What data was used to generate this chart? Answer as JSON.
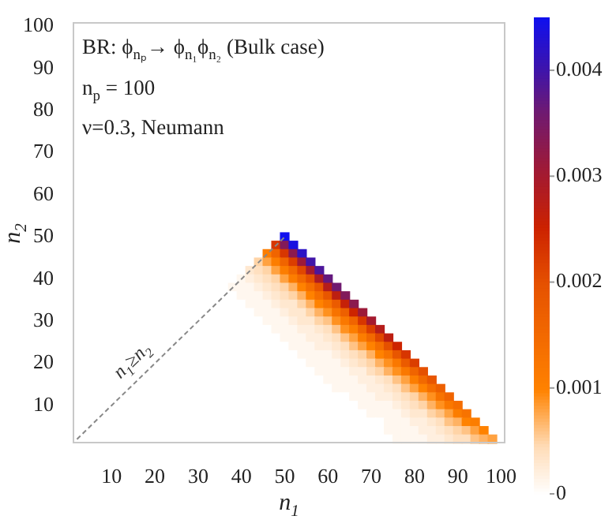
{
  "chart_data": {
    "type": "heatmap",
    "annotations": [
      "BR: ϕ$_{nₚ}$→ ϕ$_{n₁}$ϕ$_{n₂}$ (Bulk case)",
      "n$_{p}$ = 100",
      "ν=0.3, Neumann",
      "n$_{1}$≥n$_{2}$"
    ],
    "xlabel": "n$_{1}$",
    "ylabel": "n$_{2}$",
    "categories": [
      null,
      null,
      null,
      null,
      "10",
      null,
      null,
      null,
      null,
      "20",
      null,
      null,
      null,
      null,
      "30",
      null,
      null,
      null,
      null,
      "40",
      null,
      null,
      null,
      null,
      "50",
      null,
      null,
      null,
      null,
      "60",
      null,
      null,
      null,
      null,
      "70",
      null,
      null,
      null,
      null,
      "80",
      null,
      null,
      null,
      null,
      "90",
      null,
      null,
      null,
      null,
      "100"
    ],
    "y_categories": [
      "100",
      null,
      null,
      null,
      null,
      "90",
      null,
      null,
      null,
      null,
      "80",
      null,
      null,
      null,
      null,
      "70",
      null,
      null,
      null,
      null,
      "60",
      null,
      null,
      null,
      null,
      "50",
      null,
      null,
      null,
      null,
      "40",
      null,
      null,
      null,
      null,
      "30",
      null,
      null,
      null,
      null,
      "20",
      null,
      null,
      null,
      null,
      "10",
      null,
      null,
      null,
      null
    ],
    "series": [
      {
        "type": "line",
        "values": [
          49,
          48,
          47,
          46,
          45,
          44,
          43,
          42,
          41,
          40,
          39,
          38,
          37,
          36,
          35,
          34,
          33,
          32,
          31,
          30,
          29,
          28,
          27,
          26,
          25,
          null,
          null,
          null,
          null,
          null,
          null,
          null,
          null,
          null,
          null,
          null,
          null,
          null,
          null,
          null,
          null,
          null,
          null,
          null,
          null,
          null,
          null,
          null,
          null,
          null
        ],
        "color": "#888888",
        "line_style": "dashed"
      }
    ],
    "clim": [
      0,
      0.0045
    ],
    "cticks": [
      0,
      0.001,
      0.002,
      0.003,
      0.004
    ],
    "cells": [
      [
        0,
        0,
        0,
        0,
        0,
        0,
        0,
        0,
        0,
        0,
        0,
        0,
        0,
        0,
        0,
        0,
        0,
        0,
        0,
        0,
        0,
        0,
        0,
        0,
        0,
        0,
        0,
        0,
        0,
        0,
        0,
        0,
        0,
        0,
        0,
        0,
        0,
        0,
        0,
        0,
        0,
        0,
        0,
        0,
        0,
        0,
        0,
        0,
        0,
        0
      ],
      [
        0,
        0,
        0,
        0,
        0,
        0,
        0,
        0,
        0,
        0,
        0,
        0,
        0,
        0,
        0,
        0,
        0,
        0,
        0,
        0,
        0,
        0,
        0,
        0,
        0,
        0,
        0,
        0,
        0,
        0,
        0,
        0,
        0,
        0,
        0,
        0,
        0,
        0,
        0,
        0,
        0,
        0,
        0,
        0,
        0,
        0,
        0,
        0,
        0,
        0
      ],
      [
        0,
        0,
        0,
        0,
        0,
        0,
        0,
        0,
        0,
        0,
        0,
        0,
        0,
        0,
        0,
        0,
        0,
        0,
        0,
        0,
        0,
        0,
        0,
        0,
        0,
        0,
        0,
        0,
        0,
        0,
        0,
        0,
        0,
        0,
        0,
        0,
        0,
        0,
        0,
        0,
        0,
        0,
        0,
        0,
        0,
        0,
        0,
        0,
        0,
        0
      ],
      [
        0,
        0,
        0,
        0,
        0,
        0,
        0,
        0,
        0,
        0,
        0,
        0,
        0,
        0,
        0,
        0,
        0,
        0,
        0,
        0,
        0,
        0,
        0,
        0,
        0,
        0,
        0,
        0,
        0,
        0,
        0,
        0,
        0,
        0,
        0,
        0,
        0,
        0,
        0,
        0,
        0,
        0,
        0,
        0,
        0,
        0,
        0,
        0,
        0,
        0
      ],
      [
        0,
        0,
        0,
        0,
        0,
        0,
        0,
        0,
        0,
        0,
        0,
        0,
        0,
        0,
        0,
        0,
        0,
        0,
        0,
        0,
        0,
        0,
        0,
        0,
        0,
        0,
        0,
        0,
        0,
        0,
        0,
        0,
        0,
        0,
        0,
        0,
        0,
        0,
        0,
        0,
        0,
        0,
        0,
        0,
        0,
        0,
        0,
        0,
        0,
        0
      ],
      [
        0,
        0,
        0,
        0,
        0,
        0,
        0,
        0,
        0,
        0,
        0,
        0,
        0,
        0,
        0,
        0,
        0,
        0,
        0,
        0,
        0,
        0,
        0,
        0,
        0,
        0,
        0,
        0,
        0,
        0,
        0,
        0,
        0,
        0,
        0,
        0,
        0,
        0,
        0,
        0,
        0,
        0,
        0,
        0,
        0,
        0,
        0,
        0,
        0,
        0
      ],
      [
        0,
        0,
        0,
        0,
        0,
        0,
        0,
        0,
        0,
        0,
        0,
        0,
        0,
        0,
        0,
        0,
        0,
        0,
        0,
        0,
        0,
        0,
        0,
        0,
        0,
        0,
        0,
        0,
        0,
        0,
        0,
        0,
        0,
        0,
        0,
        0,
        0,
        0,
        0,
        0,
        0,
        0,
        0,
        0,
        0,
        0,
        0,
        0,
        0,
        0
      ],
      [
        0,
        0,
        0,
        0,
        0,
        0,
        0,
        0,
        0,
        0,
        0,
        0,
        0,
        0,
        0,
        0,
        0,
        0,
        0,
        0,
        0,
        0,
        0,
        0,
        0,
        0,
        0,
        0,
        0,
        0,
        0,
        0,
        0,
        0,
        0,
        0,
        0,
        0,
        0,
        0,
        0,
        0,
        0,
        0,
        0,
        0,
        0,
        0,
        0,
        0
      ],
      [
        0,
        0,
        0,
        0,
        0,
        0,
        0,
        0,
        0,
        0,
        0,
        0,
        0,
        0,
        0,
        0,
        0,
        0,
        0,
        0,
        0,
        0,
        0,
        0,
        0,
        0,
        0,
        0,
        0,
        0,
        0,
        0,
        0,
        0,
        0,
        0,
        0,
        0,
        0,
        0,
        0,
        0,
        0,
        0,
        0,
        0,
        0,
        0,
        0,
        0
      ],
      [
        0,
        0,
        0,
        0,
        0,
        0,
        0,
        0,
        0,
        0,
        0,
        0,
        0,
        0,
        0,
        0,
        0,
        0,
        0,
        0,
        0,
        0,
        0,
        0,
        0,
        0,
        0,
        0,
        0,
        0,
        0,
        0,
        0,
        0,
        0,
        0,
        0,
        0,
        0,
        0,
        0,
        0,
        0,
        0,
        0,
        0,
        0,
        0,
        0,
        0
      ],
      [
        0,
        0,
        0,
        0,
        0,
        0,
        0,
        0,
        0,
        0,
        0,
        0,
        0,
        0,
        0,
        0,
        0,
        0,
        0,
        0,
        0,
        0,
        0,
        0,
        0,
        0,
        0,
        0,
        0,
        0,
        0,
        0,
        0,
        0,
        0,
        0,
        0,
        0,
        0,
        0,
        0,
        0,
        0,
        0,
        0,
        0,
        0,
        0,
        0,
        0
      ],
      [
        0,
        0,
        0,
        0,
        0,
        0,
        0,
        0,
        0,
        0,
        0,
        0,
        0,
        0,
        0,
        0,
        0,
        0,
        0,
        0,
        0,
        0,
        0,
        0,
        0,
        0,
        0,
        0,
        0,
        0,
        0,
        0,
        0,
        0,
        0,
        0,
        0,
        0,
        0,
        0,
        0,
        0,
        0,
        0,
        0,
        0,
        0,
        0,
        0,
        0
      ],
      [
        0,
        0,
        0,
        0,
        0,
        0,
        0,
        0,
        0,
        0,
        0,
        0,
        0,
        0,
        0,
        0,
        0,
        0,
        0,
        0,
        0,
        0,
        0,
        0,
        0,
        0,
        0,
        0,
        0,
        0,
        0,
        0,
        0,
        0,
        0,
        0,
        0,
        0,
        0,
        0,
        0,
        0,
        0,
        0,
        0,
        0,
        0,
        0,
        0,
        0
      ],
      [
        0,
        0,
        0,
        0,
        0,
        0,
        0,
        0,
        0,
        0,
        0,
        0,
        0,
        0,
        0,
        0,
        0,
        0,
        0,
        0,
        0,
        0,
        0,
        0,
        0,
        0,
        0,
        0,
        0,
        0,
        0,
        0,
        0,
        0,
        0,
        0,
        0,
        0,
        0,
        0,
        0,
        0,
        0,
        0,
        0,
        0,
        0,
        0,
        0,
        0
      ],
      [
        0,
        0,
        0,
        0,
        0,
        0,
        0,
        0,
        0,
        0,
        0,
        0,
        0,
        0,
        0,
        0,
        0,
        0,
        0,
        0,
        0,
        0,
        0,
        0,
        0,
        0,
        0,
        0,
        0,
        0,
        0,
        0,
        0,
        0,
        0,
        0,
        0,
        0,
        0,
        0,
        0,
        0,
        0,
        0,
        0,
        0,
        0,
        0,
        0,
        0
      ],
      [
        0,
        0,
        0,
        0,
        0,
        0,
        0,
        0,
        0,
        0,
        0,
        0,
        0,
        0,
        0,
        0,
        0,
        0,
        0,
        0,
        0,
        0,
        0,
        0,
        0,
        0,
        0,
        0,
        0,
        0,
        0,
        0,
        0,
        0,
        0,
        0,
        0,
        0,
        0,
        0,
        0,
        0,
        0,
        0,
        0,
        0,
        0,
        0,
        0,
        0
      ],
      [
        0,
        0,
        0,
        0,
        0,
        0,
        0,
        0,
        0,
        0,
        0,
        0,
        0,
        0,
        0,
        0,
        0,
        0,
        0,
        0,
        0,
        0,
        0,
        0,
        0,
        0,
        0,
        0,
        0,
        0,
        0,
        0,
        0,
        0,
        0,
        0,
        0,
        0,
        0,
        0,
        0,
        0,
        0,
        0,
        0,
        0,
        0,
        0,
        0,
        0
      ],
      [
        0,
        0,
        0,
        0,
        0,
        0,
        0,
        0,
        0,
        0,
        0,
        0,
        0,
        0,
        0,
        0,
        0,
        0,
        0,
        0,
        0,
        0,
        0,
        0,
        0,
        0,
        0,
        0,
        0,
        0,
        0,
        0,
        0,
        0,
        0,
        0,
        0,
        0,
        0,
        0,
        0,
        0,
        0,
        0,
        0,
        0,
        0,
        0,
        0,
        0
      ],
      [
        0,
        0,
        0,
        0,
        0,
        0,
        0,
        0,
        0,
        0,
        0,
        0,
        0,
        0,
        0,
        0,
        0,
        0,
        0,
        0,
        0,
        0,
        0,
        0,
        0,
        0,
        0,
        0,
        0,
        0,
        0,
        0,
        0,
        0,
        0,
        0,
        0,
        0,
        0,
        0,
        0,
        0,
        0,
        0,
        0,
        0,
        0,
        0,
        0,
        0
      ],
      [
        0,
        0,
        0,
        0,
        0,
        0,
        0,
        0,
        0,
        0,
        0,
        0,
        0,
        0,
        0,
        0,
        0,
        0,
        0,
        0,
        0,
        0,
        0,
        0,
        0,
        0,
        0,
        0,
        0,
        0,
        0,
        0,
        0,
        0,
        0,
        0,
        0,
        0,
        0,
        0,
        0,
        0,
        0,
        0,
        0,
        0,
        0,
        0,
        0,
        0
      ],
      [
        0,
        0,
        0,
        0,
        0,
        0,
        0,
        0,
        0,
        0,
        0,
        0,
        0,
        0,
        0,
        0,
        0,
        0,
        0,
        0,
        0,
        0,
        0,
        0,
        0,
        0,
        0,
        0,
        0,
        0,
        0,
        0,
        0,
        0,
        0,
        0,
        0,
        0,
        0,
        0,
        0,
        0,
        0,
        0,
        0,
        0,
        0,
        0,
        0,
        0
      ],
      [
        0,
        0,
        0,
        0,
        0,
        0,
        0,
        0,
        0,
        0,
        0,
        0,
        0,
        0,
        0,
        0,
        0,
        0,
        0,
        0,
        0,
        0,
        0,
        0,
        0,
        0,
        0,
        0,
        0,
        0,
        0,
        0,
        0,
        0,
        0,
        0,
        0,
        0,
        0,
        0,
        0,
        0,
        0,
        0,
        0,
        0,
        0,
        0,
        0,
        0
      ],
      [
        0,
        0,
        0,
        0,
        0,
        0,
        0,
        0,
        0,
        0,
        0,
        0,
        0,
        0,
        0,
        0,
        0,
        0,
        0,
        0,
        0,
        0,
        0,
        0,
        0,
        0,
        0,
        0,
        0,
        0,
        0,
        0,
        0,
        0,
        0,
        0,
        0,
        0,
        0,
        0,
        0,
        0,
        0,
        0,
        0,
        0,
        0,
        0,
        0,
        0
      ],
      [
        0,
        0,
        0,
        0,
        0,
        0,
        0,
        0,
        0,
        0,
        0,
        0,
        0,
        0,
        0,
        0,
        0,
        0,
        0,
        0,
        0,
        0,
        0,
        0,
        0,
        0,
        0,
        0,
        0,
        0,
        0,
        0,
        0,
        0,
        0,
        0,
        0,
        0,
        0,
        0,
        0,
        0,
        0,
        0,
        0,
        0,
        0,
        0,
        0,
        0
      ],
      [
        0,
        0,
        0,
        0,
        0,
        0,
        0,
        0,
        0,
        0,
        0,
        0,
        0,
        0,
        0,
        0,
        0,
        0,
        0,
        0,
        0,
        0,
        0,
        0,
        0,
        0,
        0,
        0,
        0,
        0,
        0,
        0,
        0,
        0,
        0,
        0,
        0,
        0,
        0,
        0,
        0,
        0,
        0,
        0,
        0,
        0,
        0,
        0,
        0,
        0
      ],
      [
        null,
        null,
        null,
        null,
        null,
        null,
        null,
        null,
        null,
        null,
        null,
        null,
        null,
        null,
        null,
        null,
        null,
        null,
        null,
        null,
        null,
        null,
        null,
        null,
        0.0045,
        null,
        null,
        null,
        null,
        null,
        null,
        null,
        null,
        null,
        null,
        null,
        null,
        null,
        null,
        null,
        null,
        null,
        null,
        null,
        null,
        null,
        null,
        null,
        null,
        null
      ],
      [
        null,
        null,
        null,
        null,
        null,
        null,
        null,
        null,
        null,
        null,
        null,
        null,
        null,
        null,
        null,
        null,
        null,
        null,
        null,
        null,
        null,
        null,
        null,
        0.0023,
        0.0034,
        0.0044,
        null,
        null,
        null,
        null,
        null,
        null,
        null,
        null,
        null,
        null,
        null,
        null,
        null,
        null,
        null,
        null,
        null,
        null,
        null,
        null,
        null,
        null,
        null,
        null
      ],
      [
        null,
        null,
        null,
        null,
        null,
        null,
        null,
        null,
        null,
        null,
        null,
        null,
        null,
        null,
        null,
        null,
        null,
        null,
        null,
        null,
        null,
        null,
        0.0011,
        0.0016,
        0.0023,
        0.0033,
        0.0042,
        null,
        null,
        null,
        null,
        null,
        null,
        null,
        null,
        null,
        null,
        null,
        null,
        null,
        null,
        null,
        null,
        null,
        null,
        null,
        null,
        null,
        null,
        null
      ],
      [
        null,
        null,
        null,
        null,
        null,
        null,
        null,
        null,
        null,
        null,
        null,
        null,
        null,
        null,
        null,
        null,
        null,
        null,
        null,
        null,
        null,
        0.0005,
        0.0008,
        0.0011,
        0.0016,
        0.0022,
        0.0031,
        0.004,
        null,
        null,
        null,
        null,
        null,
        null,
        null,
        null,
        null,
        null,
        null,
        null,
        null,
        null,
        null,
        null,
        null,
        null,
        null,
        null,
        null,
        null
      ],
      [
        null,
        null,
        null,
        null,
        null,
        null,
        null,
        null,
        null,
        null,
        null,
        null,
        null,
        null,
        null,
        null,
        null,
        null,
        null,
        null,
        0.0003,
        0.0004,
        0.0005,
        0.0008,
        0.0011,
        0.0015,
        0.0021,
        0.003,
        0.0039,
        null,
        null,
        null,
        null,
        null,
        null,
        null,
        null,
        null,
        null,
        null,
        null,
        null,
        null,
        null,
        null,
        null,
        null,
        null,
        null,
        null
      ],
      [
        null,
        null,
        null,
        null,
        null,
        null,
        null,
        null,
        null,
        null,
        null,
        null,
        null,
        null,
        null,
        null,
        null,
        null,
        null,
        0.0001,
        0.0002,
        0.0003,
        0.0004,
        0.0005,
        0.0008,
        0.0011,
        0.0015,
        0.002,
        0.0029,
        0.0037,
        null,
        null,
        null,
        null,
        null,
        null,
        null,
        null,
        null,
        null,
        null,
        null,
        null,
        null,
        null,
        null,
        null,
        null,
        null,
        null
      ],
      [
        null,
        null,
        null,
        null,
        null,
        null,
        null,
        null,
        null,
        null,
        null,
        null,
        null,
        null,
        null,
        null,
        null,
        null,
        0.0001,
        0.0001,
        0.0001,
        0.0002,
        0.0003,
        0.0004,
        0.0005,
        0.0007,
        0.001,
        0.0014,
        0.0019,
        0.0028,
        0.0036,
        null,
        null,
        null,
        null,
        null,
        null,
        null,
        null,
        null,
        null,
        null,
        null,
        null,
        null,
        null,
        null,
        null,
        null,
        null
      ],
      [
        null,
        null,
        null,
        null,
        null,
        null,
        null,
        null,
        null,
        null,
        null,
        null,
        null,
        null,
        null,
        null,
        null,
        0,
        0,
        0.0001,
        0.0001,
        0.0001,
        0.0002,
        0.0003,
        0.0004,
        0.0005,
        0.0007,
        0.001,
        0.0014,
        0.0019,
        0.0027,
        0.0034,
        null,
        null,
        null,
        null,
        null,
        null,
        null,
        null,
        null,
        null,
        null,
        null,
        null,
        null,
        null,
        null,
        null,
        null
      ],
      [
        null,
        null,
        null,
        null,
        null,
        null,
        null,
        null,
        null,
        null,
        null,
        null,
        null,
        null,
        null,
        null,
        0,
        0,
        0,
        0,
        0.0001,
        0.0001,
        0.0001,
        0.0002,
        0.0003,
        0.0003,
        0.0005,
        0.0007,
        0.001,
        0.0013,
        0.0018,
        0.0026,
        0.0033,
        null,
        null,
        null,
        null,
        null,
        null,
        null,
        null,
        null,
        null,
        null,
        null,
        null,
        null,
        null,
        null,
        null
      ],
      [
        null,
        null,
        null,
        null,
        null,
        null,
        null,
        null,
        null,
        null,
        null,
        null,
        null,
        null,
        null,
        0,
        0,
        0,
        0,
        0,
        0,
        0.0001,
        0.0001,
        0.0001,
        0.0002,
        0.0003,
        0.0003,
        0.0005,
        0.0007,
        0.0009,
        0.0013,
        0.0017,
        0.0025,
        0.0031,
        null,
        null,
        null,
        null,
        null,
        null,
        null,
        null,
        null,
        null,
        null,
        null,
        null,
        null,
        null,
        null
      ],
      [
        null,
        null,
        null,
        null,
        null,
        null,
        null,
        null,
        null,
        null,
        null,
        null,
        null,
        null,
        0,
        0,
        0,
        0,
        0,
        0,
        0,
        0,
        0.0001,
        0.0001,
        0.0001,
        0.0002,
        0.0003,
        0.0003,
        0.0005,
        0.0006,
        0.0009,
        0.0012,
        0.0016,
        0.0023,
        0.003,
        null,
        null,
        null,
        null,
        null,
        null,
        null,
        null,
        null,
        null,
        null,
        null,
        null,
        null,
        null
      ],
      [
        null,
        null,
        null,
        null,
        null,
        null,
        null,
        null,
        null,
        null,
        null,
        null,
        null,
        0,
        0,
        0,
        0,
        0,
        0,
        0,
        0,
        0,
        0,
        0.0001,
        0.0001,
        0.0001,
        0.0002,
        0.0002,
        0.0003,
        0.0004,
        0.0006,
        0.0009,
        0.0011,
        0.0016,
        0.0022,
        0.0028,
        null,
        null,
        null,
        null,
        null,
        null,
        null,
        null,
        null,
        null,
        null,
        null,
        null,
        null
      ],
      [
        null,
        null,
        null,
        null,
        null,
        null,
        null,
        null,
        null,
        null,
        null,
        null,
        0,
        0,
        0,
        0,
        0,
        0,
        0,
        0,
        0,
        0,
        0,
        0,
        0.0001,
        0.0001,
        0.0001,
        0.0002,
        0.0002,
        0.0003,
        0.0004,
        0.0006,
        0.0008,
        0.0011,
        0.0015,
        0.0021,
        0.0027,
        null,
        null,
        null,
        null,
        null,
        null,
        null,
        null,
        null,
        null,
        null,
        null,
        null
      ],
      [
        null,
        null,
        null,
        null,
        null,
        null,
        null,
        null,
        null,
        null,
        null,
        0,
        0,
        0,
        0,
        0,
        0,
        0,
        0,
        0,
        0,
        0,
        0,
        0,
        0,
        0.0001,
        0.0001,
        0.0001,
        0.0002,
        0.0002,
        0.0003,
        0.0004,
        0.0006,
        0.0008,
        0.001,
        0.0014,
        0.002,
        0.0025,
        null,
        null,
        null,
        null,
        null,
        null,
        null,
        null,
        null,
        null,
        null,
        null
      ],
      [
        null,
        null,
        null,
        null,
        null,
        null,
        null,
        null,
        null,
        null,
        0,
        0,
        0,
        0,
        0,
        0,
        0,
        0,
        0,
        0,
        0,
        0,
        0,
        0,
        0,
        0,
        0.0001,
        0.0001,
        0.0001,
        0.0001,
        0.0002,
        0.0003,
        0.0004,
        0.0005,
        0.0007,
        0.001,
        0.0013,
        0.0019,
        0.0023,
        null,
        null,
        null,
        null,
        null,
        null,
        null,
        null,
        null,
        null,
        null
      ],
      [
        null,
        null,
        null,
        null,
        null,
        null,
        null,
        null,
        null,
        0,
        0,
        0,
        0,
        0,
        0,
        0,
        0,
        0,
        0,
        0,
        0,
        0,
        0,
        0,
        0,
        0,
        0,
        0.0001,
        0.0001,
        0.0001,
        0.0001,
        0.0002,
        0.0003,
        0.0004,
        0.0005,
        0.0007,
        0.0009,
        0.0012,
        0.0018,
        0.0022,
        null,
        null,
        null,
        null,
        null,
        null,
        null,
        null,
        null,
        null
      ],
      [
        null,
        null,
        null,
        null,
        null,
        null,
        null,
        null,
        0,
        0,
        0,
        0,
        0,
        0,
        0,
        0,
        0,
        0,
        0,
        0,
        0,
        0,
        0,
        0,
        0,
        0,
        0,
        0,
        0.0001,
        0.0001,
        0.0001,
        0.0001,
        0.0002,
        0.0002,
        0.0004,
        0.0005,
        0.0007,
        0.0009,
        0.0012,
        0.0016,
        0.002,
        null,
        null,
        null,
        null,
        null,
        null,
        null,
        null,
        null
      ],
      [
        null,
        null,
        null,
        null,
        null,
        null,
        null,
        0,
        0,
        0,
        0,
        0,
        0,
        0,
        0,
        0,
        0,
        0,
        0,
        0,
        0,
        0,
        0,
        0,
        0,
        0,
        0,
        0,
        0,
        0.0001,
        0.0001,
        0.0001,
        0.0001,
        0.0002,
        0.0002,
        0.0003,
        0.0004,
        0.0006,
        0.0008,
        0.0011,
        0.0015,
        0.0019,
        null,
        null,
        null,
        null,
        null,
        null,
        null,
        null
      ],
      [
        null,
        null,
        null,
        null,
        null,
        null,
        0,
        0,
        0,
        0,
        0,
        0,
        0,
        0,
        0,
        0,
        0,
        0,
        0,
        0,
        0,
        0,
        0,
        0,
        0,
        0,
        0,
        0,
        0,
        0,
        0.0001,
        0.0001,
        0.0001,
        0.0001,
        0.0002,
        0.0002,
        0.0003,
        0.0004,
        0.0006,
        0.0008,
        0.001,
        0.0014,
        0.0017,
        null,
        null,
        null,
        null,
        null,
        null,
        null
      ],
      [
        null,
        null,
        null,
        null,
        null,
        0,
        0,
        0,
        0,
        0,
        0,
        0,
        0,
        0,
        0,
        0,
        0,
        0,
        0,
        0,
        0,
        0,
        0,
        0,
        0,
        0,
        0,
        0,
        0,
        0,
        0,
        0,
        0.0001,
        0.0001,
        0.0001,
        0.0002,
        0.0002,
        0.0003,
        0.0004,
        0.0005,
        0.0007,
        0.0009,
        0.0013,
        0.0016,
        null,
        null,
        null,
        null,
        null,
        null
      ],
      [
        null,
        null,
        null,
        null,
        0,
        0,
        0,
        0,
        0,
        0,
        0,
        0,
        0,
        0,
        0,
        0,
        0,
        0,
        0,
        0,
        0,
        0,
        0,
        0,
        0,
        0,
        0,
        0,
        0,
        0,
        0,
        0,
        0,
        0.0001,
        0.0001,
        0.0001,
        0.0001,
        0.0002,
        0.0003,
        0.0004,
        0.0005,
        0.0007,
        0.0009,
        0.0012,
        0.0014,
        null,
        null,
        null,
        null,
        null
      ],
      [
        null,
        null,
        null,
        0,
        0,
        0,
        0,
        0,
        0,
        0,
        0,
        0,
        0,
        0,
        0,
        0,
        0,
        0,
        0,
        0,
        0,
        0,
        0,
        0,
        0,
        0,
        0,
        0,
        0,
        0,
        0,
        0,
        0,
        0,
        0.0001,
        0.0001,
        0.0001,
        0.0001,
        0.0002,
        0.0003,
        0.0003,
        0.0005,
        0.0006,
        0.0008,
        0.0011,
        0.0013,
        null,
        null,
        null,
        null
      ],
      [
        null,
        null,
        0,
        0,
        0,
        0,
        0,
        0,
        0,
        0,
        0,
        0,
        0,
        0,
        0,
        0,
        0,
        0,
        0,
        0,
        0,
        0,
        0,
        0,
        0,
        0,
        0,
        0,
        0,
        0,
        0,
        0,
        0,
        0,
        0,
        0,
        0.0001,
        0.0001,
        0.0001,
        0.0002,
        0.0002,
        0.0003,
        0.0004,
        0.0006,
        0.0007,
        0.001,
        0.0011,
        null,
        null,
        null
      ],
      [
        null,
        0,
        0,
        0,
        0,
        0,
        0,
        0,
        0,
        0,
        0,
        0,
        0,
        0,
        0,
        0,
        0,
        0,
        0,
        0,
        0,
        0,
        0,
        0,
        0,
        0,
        0,
        0,
        0,
        0,
        0,
        0,
        0,
        0,
        0,
        0,
        0.0001,
        0.0001,
        0.0001,
        0.0001,
        0.0002,
        0.0002,
        0.0003,
        0.0004,
        0.0005,
        0.0006,
        0.0008,
        0.001,
        null,
        null
      ],
      [
        0,
        0,
        0,
        0,
        0,
        0,
        0,
        0,
        0,
        0,
        0,
        0,
        0,
        0,
        0,
        0,
        0,
        0,
        0,
        0,
        0,
        0,
        0,
        0,
        0,
        0,
        0,
        0,
        0,
        0,
        0,
        0,
        0,
        0,
        0,
        0,
        0,
        0.0001,
        0.0001,
        0.0001,
        0.0001,
        0.0002,
        0.0002,
        0.0003,
        0.0004,
        0.0004,
        0.0006,
        0.0007,
        0.0008,
        null
      ]
    ]
  }
}
